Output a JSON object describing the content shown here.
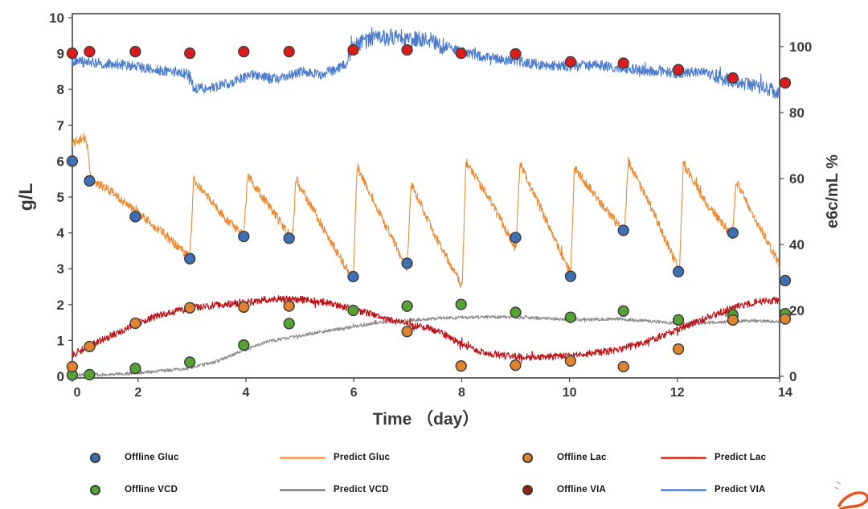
{
  "chart_data": {
    "type": "line+scatter",
    "title": "",
    "xlabel": "Time （day）",
    "ylabel_left": "g/L",
    "ylabel_right": "e6c/mL  %",
    "x_ticks": [
      0,
      2,
      4,
      6,
      8,
      10,
      12,
      14
    ],
    "y_left_ticks": [
      0,
      1,
      2,
      3,
      4,
      5,
      6,
      7,
      8,
      9,
      10
    ],
    "y_right_ticks": [
      0,
      20,
      40,
      60,
      80,
      100
    ],
    "ylim_left": [
      0,
      10
    ],
    "ylim_right": [
      0,
      110
    ],
    "x_visible_range": [
      0.78,
      14.1
    ],
    "grid": false,
    "series": [
      {
        "name": "Predict VCD",
        "type": "line",
        "axis": "right",
        "color": "#8C8C8C",
        "noise": 0.5,
        "anchors": [
          [
            0.78,
            0.4
          ],
          [
            1.3,
            0.5
          ],
          [
            1.8,
            0.8
          ],
          [
            2.3,
            1.4
          ],
          [
            2.9,
            2.4
          ],
          [
            3.4,
            4.2
          ],
          [
            3.9,
            7.5
          ],
          [
            4.4,
            10.5
          ],
          [
            4.9,
            12.0
          ],
          [
            5.4,
            13.5
          ],
          [
            5.9,
            14.8
          ],
          [
            6.4,
            16.2
          ],
          [
            7.0,
            16.9
          ],
          [
            7.6,
            17.6
          ],
          [
            8.2,
            17.9
          ],
          [
            8.8,
            18.1
          ],
          [
            9.5,
            17.6
          ],
          [
            10.2,
            17.2
          ],
          [
            10.9,
            17.4
          ],
          [
            11.6,
            16.6
          ],
          [
            12.1,
            15.9
          ],
          [
            12.7,
            16.3
          ],
          [
            13.3,
            16.9
          ],
          [
            13.8,
            16.6
          ],
          [
            14.1,
            16.2
          ]
        ]
      },
      {
        "name": "Predict Lac",
        "type": "line",
        "axis": "left",
        "color": "#BB1117",
        "noise": 0.1,
        "anchors": [
          [
            0.78,
            0.6
          ],
          [
            1.1,
            0.85
          ],
          [
            1.6,
            1.2
          ],
          [
            2.0,
            1.5
          ],
          [
            2.5,
            1.75
          ],
          [
            3.0,
            1.9
          ],
          [
            3.5,
            2.0
          ],
          [
            4.0,
            2.05
          ],
          [
            4.4,
            2.15
          ],
          [
            5.0,
            2.15
          ],
          [
            5.5,
            2.05
          ],
          [
            5.9,
            1.9
          ],
          [
            6.3,
            1.75
          ],
          [
            6.7,
            1.55
          ],
          [
            7.0,
            1.45
          ],
          [
            7.4,
            1.35
          ],
          [
            7.7,
            1.15
          ],
          [
            8.0,
            0.9
          ],
          [
            8.3,
            0.7
          ],
          [
            8.8,
            0.58
          ],
          [
            9.4,
            0.52
          ],
          [
            10.0,
            0.58
          ],
          [
            10.5,
            0.65
          ],
          [
            11.0,
            0.78
          ],
          [
            11.5,
            1.0
          ],
          [
            12.0,
            1.3
          ],
          [
            12.5,
            1.6
          ],
          [
            13.0,
            1.9
          ],
          [
            13.4,
            2.05
          ],
          [
            13.8,
            2.12
          ],
          [
            14.1,
            2.05
          ]
        ]
      },
      {
        "name": "Predict Gluc",
        "type": "line",
        "axis": "left",
        "color": "#EC8A33",
        "noise": 0.13,
        "anchors": [
          [
            0.78,
            6.5
          ],
          [
            0.9,
            6.55
          ],
          [
            1.0,
            6.68
          ],
          [
            1.06,
            6.4
          ],
          [
            1.12,
            5.5
          ],
          [
            1.5,
            5.15
          ],
          [
            2.0,
            4.55
          ],
          [
            2.5,
            3.95
          ],
          [
            2.96,
            3.3
          ],
          [
            3.03,
            5.5
          ],
          [
            3.5,
            4.6
          ],
          [
            3.96,
            3.9
          ],
          [
            4.03,
            5.6
          ],
          [
            4.45,
            4.7
          ],
          [
            4.86,
            3.8
          ],
          [
            4.93,
            5.5
          ],
          [
            5.5,
            3.95
          ],
          [
            5.99,
            2.7
          ],
          [
            6.06,
            5.85
          ],
          [
            6.5,
            4.5
          ],
          [
            6.99,
            3.0
          ],
          [
            7.06,
            5.4
          ],
          [
            7.5,
            3.95
          ],
          [
            8.01,
            2.5
          ],
          [
            8.08,
            6.0
          ],
          [
            8.55,
            4.85
          ],
          [
            9.01,
            3.55
          ],
          [
            9.08,
            5.95
          ],
          [
            9.55,
            4.4
          ],
          [
            10.02,
            2.85
          ],
          [
            10.09,
            5.8
          ],
          [
            10.55,
            4.9
          ],
          [
            11.02,
            4.0
          ],
          [
            11.09,
            6.0
          ],
          [
            11.55,
            4.6
          ],
          [
            12.04,
            2.9
          ],
          [
            12.11,
            5.95
          ],
          [
            12.55,
            4.8
          ],
          [
            13.02,
            3.9
          ],
          [
            13.09,
            5.45
          ],
          [
            13.55,
            4.1
          ],
          [
            13.95,
            2.95
          ],
          [
            14.1,
            3.3
          ]
        ]
      },
      {
        "name": "Predict VIA",
        "type": "line",
        "axis": "right",
        "color": "#4C7CCB",
        "noise": 1.6,
        "noise_zones": [
          [
            5.9,
            7.7,
            2.6
          ],
          [
            12.7,
            14.15,
            2.2
          ]
        ],
        "anchors": [
          [
            0.78,
            95.5
          ],
          [
            1.2,
            95.2
          ],
          [
            1.7,
            94.5
          ],
          [
            2.3,
            93.0
          ],
          [
            2.75,
            92.2
          ],
          [
            2.95,
            91.5
          ],
          [
            3.03,
            87.5
          ],
          [
            3.4,
            87.5
          ],
          [
            3.75,
            89.5
          ],
          [
            4.15,
            91.5
          ],
          [
            4.5,
            90.0
          ],
          [
            4.75,
            91.0
          ],
          [
            5.05,
            92.5
          ],
          [
            5.35,
            91.5
          ],
          [
            5.65,
            93.0
          ],
          [
            5.85,
            94.5
          ],
          [
            5.97,
            99.5
          ],
          [
            6.2,
            101.5
          ],
          [
            6.5,
            102.5
          ],
          [
            6.8,
            103.0
          ],
          [
            7.1,
            102.0
          ],
          [
            7.35,
            102.5
          ],
          [
            7.6,
            100.5
          ],
          [
            7.9,
            99.0
          ],
          [
            8.4,
            97.0
          ],
          [
            9.0,
            95.5
          ],
          [
            9.5,
            94.5
          ],
          [
            10.0,
            94.0
          ],
          [
            10.5,
            94.5
          ],
          [
            11.0,
            93.5
          ],
          [
            11.5,
            92.5
          ],
          [
            12.0,
            92.0
          ],
          [
            12.4,
            92.5
          ],
          [
            12.9,
            90.0
          ],
          [
            13.3,
            89.0
          ],
          [
            13.7,
            87.0
          ],
          [
            14.1,
            84.5
          ]
        ]
      },
      {
        "name": "Offline VCD",
        "type": "scatter",
        "axis": "right",
        "color": "#55A333",
        "x": [
          0.78,
          1.1,
          1.95,
          2.96,
          3.96,
          4.8,
          5.99,
          6.99,
          7.99,
          9.0,
          10.02,
          11.0,
          12.02,
          13.03,
          14.0
        ],
        "y": [
          0.4,
          0.5,
          2.4,
          4.3,
          9.5,
          16.0,
          20.0,
          21.3,
          21.8,
          19.4,
          17.9,
          19.8,
          17.1,
          18.6,
          19.0
        ]
      },
      {
        "name": "Offline Lac",
        "type": "scatter",
        "axis": "left",
        "color": "#E2832E",
        "x": [
          0.78,
          1.1,
          1.95,
          2.96,
          3.96,
          4.8,
          6.99,
          7.99,
          9.0,
          10.02,
          11.0,
          12.02,
          13.03,
          14.0
        ],
        "y": [
          0.27,
          0.83,
          1.48,
          1.91,
          1.93,
          1.96,
          1.25,
          0.29,
          0.31,
          0.43,
          0.27,
          0.76,
          1.57,
          1.6
        ]
      },
      {
        "name": "Offline Gluc",
        "type": "scatter",
        "axis": "left",
        "color": "#3F6FB5",
        "x": [
          0.78,
          1.1,
          1.95,
          2.96,
          3.96,
          4.8,
          5.99,
          6.99,
          9.0,
          10.02,
          11.0,
          12.02,
          13.03,
          14.0
        ],
        "y": [
          6.0,
          5.45,
          4.45,
          3.28,
          3.9,
          3.85,
          2.78,
          3.15,
          3.87,
          2.79,
          4.07,
          2.92,
          4.0,
          2.67
        ]
      },
      {
        "name": "Offline VIA",
        "type": "scatter",
        "axis": "right",
        "color": "#E01A1A",
        "x": [
          0.78,
          1.1,
          1.95,
          2.96,
          3.96,
          4.8,
          5.99,
          6.99,
          7.99,
          9.0,
          10.02,
          11.0,
          12.02,
          13.03,
          14.0
        ],
        "y": [
          98.0,
          98.5,
          98.5,
          98.0,
          98.5,
          98.5,
          99.0,
          99.0,
          98.0,
          97.8,
          95.4,
          95.0,
          93.0,
          90.5,
          89.0
        ]
      }
    ]
  },
  "legend": {
    "rows": [
      [
        {
          "marker": "dot",
          "color": "#3F6FB5",
          "label": "Offline Gluc"
        },
        {
          "marker": "line",
          "color": "#F2A36B",
          "label": "Predict Gluc"
        },
        {
          "marker": "dot",
          "color": "#E2832E",
          "label": "Offline Lac"
        },
        {
          "marker": "line",
          "color": "#D2493E",
          "label": "Predict Lac"
        }
      ],
      [
        {
          "marker": "dot",
          "color": "#55A333",
          "label": "Offline VCD"
        },
        {
          "marker": "line",
          "color": "#8F8F8F",
          "label": "Predict VCD"
        },
        {
          "marker": "dot",
          "color": "#9B1C0F",
          "label": "Offline VIA"
        },
        {
          "marker": "line",
          "color": "#6F93D8",
          "label": "Predict VIA"
        }
      ]
    ]
  },
  "annotation": {
    "description": "handwritten orange pen mark in bottom-right corner",
    "color": "#E8541E"
  }
}
